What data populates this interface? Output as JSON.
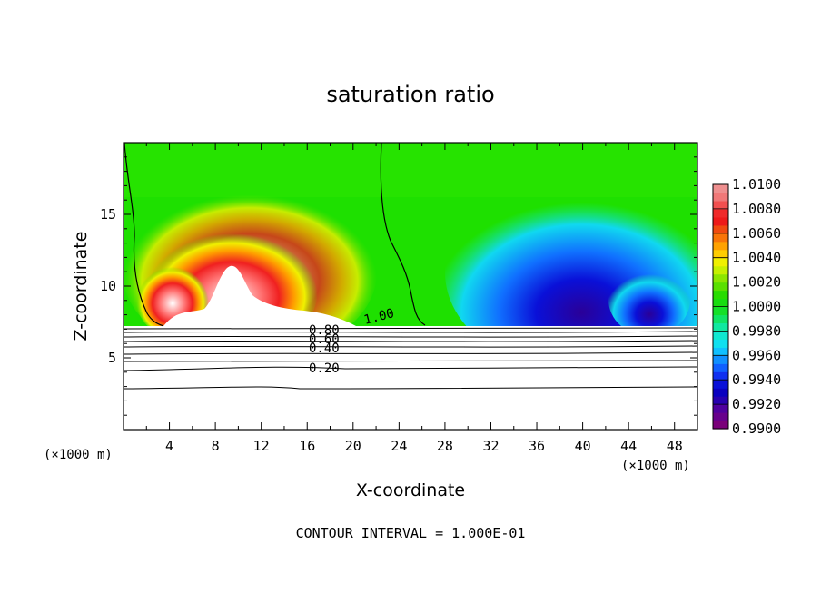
{
  "chart_data": {
    "type": "heatmap",
    "title": "saturation ratio",
    "xlabel": "X-coordinate",
    "ylabel": "Z-coordinate",
    "x_unit": "(×1000 m)",
    "z_unit": "(×1000 m)",
    "xlim": [
      0,
      50
    ],
    "ylim": [
      0,
      20
    ],
    "x_ticks": [
      "4",
      "8",
      "12",
      "16",
      "20",
      "24",
      "28",
      "32",
      "36",
      "40",
      "44",
      "48"
    ],
    "y_ticks": [
      "5",
      "10",
      "15"
    ],
    "colorbar": {
      "min": 0.99,
      "max": 1.01,
      "labels": [
        "1.0100",
        "1.0080",
        "1.0060",
        "1.0040",
        "1.0020",
        "1.0000",
        "0.9980",
        "0.9960",
        "0.9940",
        "0.9920",
        "0.9900"
      ],
      "colors": [
        "#ee8f8f",
        "#f07878",
        "#f25050",
        "#f02a2a",
        "#ee1a1a",
        "#f04a10",
        "#f87508",
        "#ffa200",
        "#ffcd00",
        "#f0f000",
        "#c6f000",
        "#8ce600",
        "#5ae000",
        "#28dc00",
        "#18dc10",
        "#14e028",
        "#10e464",
        "#10e8a0",
        "#10e8d0",
        "#10e0f0",
        "#10c0ff",
        "#1090ff",
        "#1060ff",
        "#1030f0",
        "#0a10d8",
        "#0a00c0",
        "#2800b0",
        "#50009e",
        "#68008c",
        "#7a007a"
      ]
    },
    "contour_interval": "CONTOUR INTERVAL = 1.000E-01",
    "contour_labels": [
      "1.00",
      "0.80",
      "0.60",
      "0.40",
      "0.20"
    ]
  }
}
